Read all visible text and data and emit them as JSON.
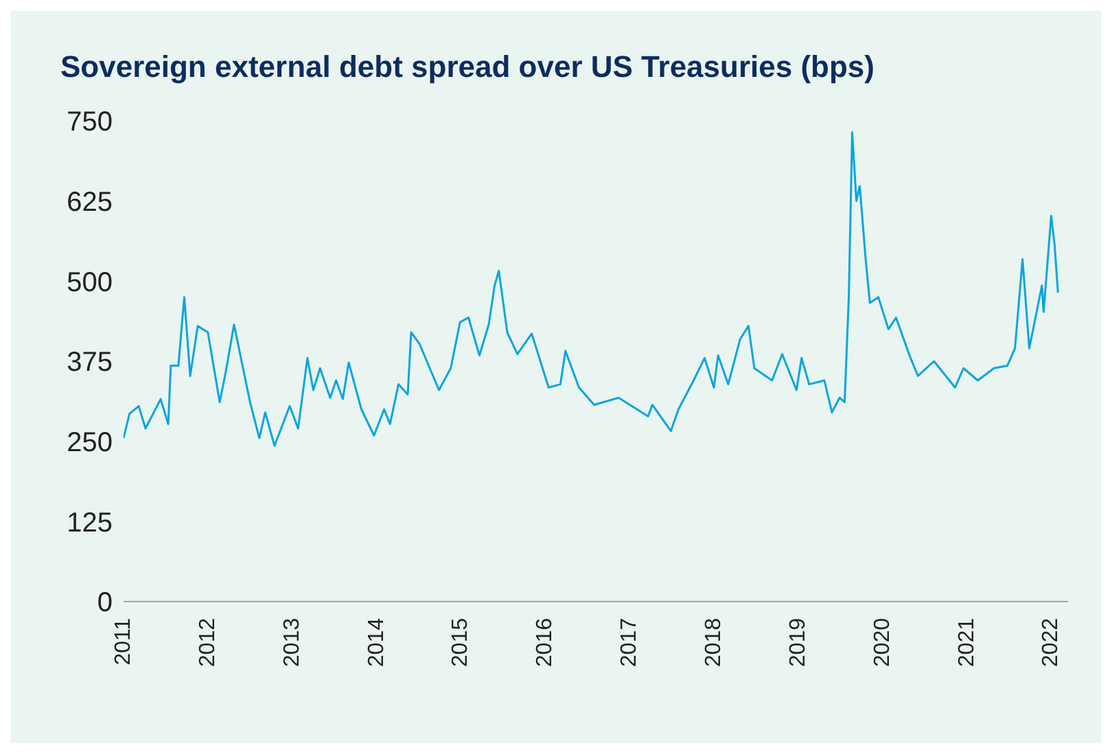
{
  "chart_data": {
    "type": "line",
    "title": "Sovereign external debt spread over US Treasuries (bps)",
    "x": [
      2011.0,
      2011.07,
      2011.18,
      2011.26,
      2011.44,
      2011.53,
      2011.56,
      2011.65,
      2011.72,
      2011.79,
      2011.88,
      2012.0,
      2012.14,
      2012.21,
      2012.31,
      2012.5,
      2012.61,
      2012.68,
      2012.79,
      2012.97,
      2013.07,
      2013.18,
      2013.25,
      2013.33,
      2013.45,
      2013.52,
      2013.6,
      2013.67,
      2013.82,
      2013.97,
      2014.09,
      2014.16,
      2014.26,
      2014.37,
      2014.41,
      2014.51,
      2014.74,
      2014.88,
      2014.99,
      2015.09,
      2015.22,
      2015.33,
      2015.4,
      2015.45,
      2015.55,
      2015.67,
      2015.84,
      2016.04,
      2016.18,
      2016.24,
      2016.4,
      2016.58,
      2016.87,
      2017.22,
      2017.27,
      2017.49,
      2017.58,
      2017.76,
      2017.89,
      2018.0,
      2018.05,
      2018.17,
      2018.31,
      2018.41,
      2018.48,
      2018.69,
      2018.81,
      2018.98,
      2019.04,
      2019.13,
      2019.31,
      2019.4,
      2019.49,
      2019.55,
      2019.6,
      2019.64,
      2019.69,
      2019.73,
      2019.8,
      2019.85,
      2019.95,
      2020.07,
      2020.16,
      2020.32,
      2020.42,
      2020.61,
      2020.86,
      2020.96,
      2021.13,
      2021.32,
      2021.48,
      2021.57,
      2021.66,
      2021.74,
      2021.89,
      2021.91,
      2022.0,
      2022.04,
      2022.08
    ],
    "series": [
      {
        "color": "#0aa6dc",
        "values": [
          255,
          293,
          305,
          270,
          316,
          277,
          368,
          368,
          475,
          352,
          430,
          420,
          311,
          357,
          432,
          311,
          255,
          295,
          243,
          305,
          270,
          380,
          330,
          364,
          318,
          345,
          316,
          373,
          300,
          259,
          300,
          277,
          339,
          323,
          420,
          402,
          330,
          364,
          436,
          443,
          384,
          432,
          493,
          516,
          420,
          386,
          418,
          334,
          339,
          391,
          334,
          307,
          318,
          289,
          307,
          266,
          300,
          345,
          380,
          334,
          384,
          339,
          409,
          430,
          364,
          345,
          386,
          330,
          380,
          339,
          345,
          295,
          318,
          311,
          475,
          732,
          625,
          648,
          534,
          466,
          475,
          425,
          443,
          384,
          352,
          375,
          334,
          364,
          345,
          364,
          368,
          395,
          534,
          395,
          493,
          452,
          602,
          557,
          482
        ]
      }
    ],
    "xlim": [
      2011,
      2022.2
    ],
    "xticks": [
      2011,
      2012,
      2013,
      2014,
      2015,
      2016,
      2017,
      2018,
      2019,
      2020,
      2021,
      2022
    ],
    "ylim": [
      0,
      750
    ],
    "yticks": [
      0,
      125,
      250,
      375,
      500,
      625,
      750
    ],
    "grid": false,
    "legend": false,
    "marker": "none",
    "line_style": "solid"
  }
}
